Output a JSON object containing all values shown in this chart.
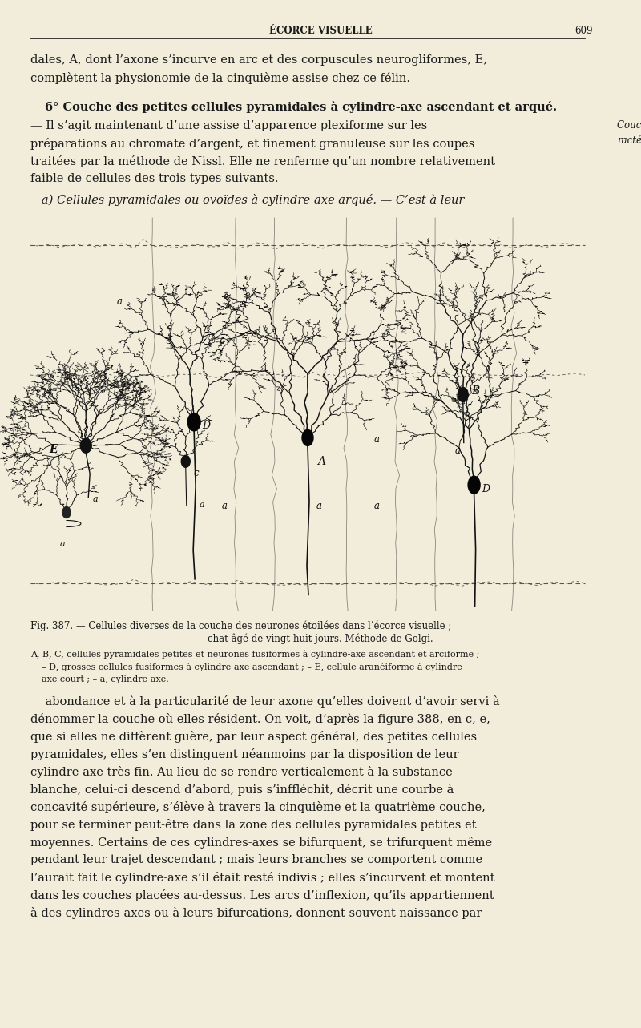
{
  "background_color": "#f2edda",
  "page_width": 8.0,
  "page_height": 12.83,
  "header_title": "ÉCORCE VISUELLE",
  "header_page": "609",
  "text_color": "#1a1a1a",
  "para1_line1": "dales, A, dont l’axone s’incurve en arc et des corpuscules neurogliformes, E,",
  "para1_line2": "complètent la physionomie de la cinquième assise chez ce félin.",
  "para2_bold": "6° Couche des petites cellules pyramidales à cylindre-axe ascendant et arqué.",
  "para2_rest_lines": [
    "— Il s’agit maintenant d’une assise d’apparence plexiforme sur les",
    "préparations au chromate d’argent, et finement granuleuse sur les coupes",
    "traitées par la méthode de Nissl. Elle ne renferme qu’un nombre relativement",
    "faible de cellules des trois types suivants."
  ],
  "side_note_line1": "Couche ca-",
  "side_note_line2": "ractéristique.",
  "para3": "   a) Cellules pyramidales ou ovoïdes à cylindre-axe arqué. — C’est à leur",
  "fig_caption_line1": "Fig. 387. — Cellules diverses de la couche des neurones étoilées dans l’écorce visuelle ;",
  "fig_caption_line2": "chat âgé de vingt-huit jours. Méthode de Golgi.",
  "fig_legend_line1": "A, B, C, cellules pyramidales petites et neurones fusiformes à cylindre-axe ascendant et arciforme ;",
  "fig_legend_line2": "– D, grosses cellules fusiformes à cylindre-axe ascendant ; – E, cellule aranéiforme à cylindre-",
  "fig_legend_line3": "axe court ; – a, cylindre-axe.",
  "para4_lines": [
    "abondance et à la particularité de leur axone qu’elles doivent d’avoir servi à",
    "dénommer la couche où elles résident. On voit, d’après la figure 388, en c, e,",
    "que si elles ne diffèrent guère, par leur aspect général, des petites cellules",
    "pyramidales, elles s’en distinguent néanmoins par la disposition de leur",
    "cylindre-axe très fin. Au lieu de se rendre verticalement à la substance",
    "blanche, celui-ci descend d’abord, puis s’inffléchit, décrit une courbe à",
    "concavité supérieure, s’élève à travers la cinquième et la quatrième couche,",
    "pour se terminer peut-être dans la zone des cellules pyramidales petites et",
    "moyennes. Certains de ces cylindres-axes se bifurquent, se trifurquent même",
    "pendant leur trajet descendant ; mais leurs branches se comportent comme",
    "l’aurait fait le cylindre-axe s’il était resté indivis ; elles s’incurvent et montent",
    "dans les couches placées au-dessus. Les arcs d’inflexion, qu’ils appartiennent",
    "à des cylindres-axes ou à leurs bifurcations, donnent souvent naissance par"
  ]
}
